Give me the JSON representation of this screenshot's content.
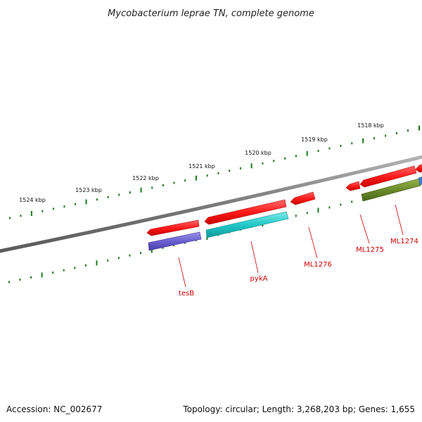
{
  "title": "Mycobacterium leprae TN, complete genome",
  "footer": {
    "accession": "Accession: NC_002677",
    "summary": "Topology: circular; Length: 3,268,203 bp; Genes: 1,655"
  },
  "colors": {
    "backbone": "#7f7f7f",
    "ticks": "#1a7a1a",
    "cds_forward": "#ff1a1a",
    "label": "#cc0000",
    "tesB": "#6a5fd0",
    "pykA": "#22c8c8",
    "ML1274": "#6a8a2a",
    "edge_gene": "#3a7fd0"
  },
  "kbp_labels": [
    "1524 kbp",
    "1523 kbp",
    "1522 kbp",
    "1521 kbp",
    "1520 kbp",
    "1519 kbp",
    "1518 kbp"
  ],
  "genes": [
    {
      "name": "tesB",
      "strand": "reverse",
      "color": "#6a5fd0"
    },
    {
      "name": "pykA",
      "strand": "reverse",
      "color": "#22c8c8"
    },
    {
      "name": "ML1276",
      "strand": "forward",
      "color": "#ff1a1a"
    },
    {
      "name": "ML1275",
      "strand": "forward",
      "color": "#ff1a1a"
    },
    {
      "name": "ML1274",
      "strand": "reverse",
      "color": "#6a8a2a"
    }
  ]
}
